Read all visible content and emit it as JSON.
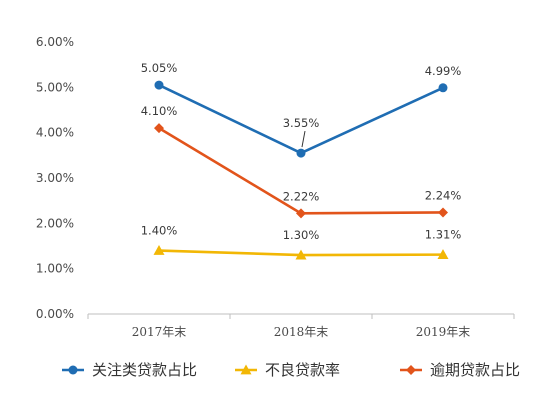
{
  "chart_data": {
    "type": "line",
    "categories": [
      "2017年末",
      "2018年末",
      "2019年末"
    ],
    "ylim": [
      0,
      6
    ],
    "ytick_labels": [
      "0.00%",
      "1.00%",
      "2.00%",
      "3.00%",
      "4.00%",
      "5.00%",
      "6.00%"
    ],
    "grid": false,
    "legend_position": "bottom",
    "series": [
      {
        "name": "关注类贷款占比",
        "values": [
          5.05,
          3.55,
          4.99
        ],
        "labels": [
          "5.05%",
          "3.55%",
          "4.99%"
        ],
        "color": "#1f6db3",
        "marker": "circle"
      },
      {
        "name": "不良贷款率",
        "values": [
          1.4,
          1.3,
          1.31
        ],
        "labels": [
          "1.40%",
          "1.30%",
          "1.31%"
        ],
        "color": "#f2b705",
        "marker": "triangle"
      },
      {
        "name": "逾期贷款占比",
        "values": [
          4.1,
          2.22,
          2.24
        ],
        "labels": [
          "4.10%",
          "2.22%",
          "2.24%"
        ],
        "color": "#e2541b",
        "marker": "diamond"
      }
    ]
  }
}
